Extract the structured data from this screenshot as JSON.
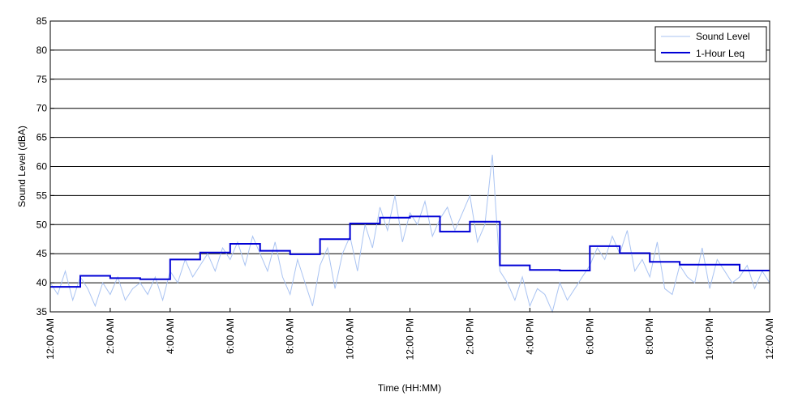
{
  "chart_data": {
    "type": "line",
    "title": "",
    "xlabel": "Time (HH:MM)",
    "ylabel": "Sound Level (dBA)",
    "xlim": [
      0,
      24
    ],
    "ylim": [
      35,
      85
    ],
    "y_ticks": [
      35,
      40,
      45,
      50,
      55,
      60,
      65,
      70,
      75,
      80,
      85
    ],
    "x_ticks": [
      {
        "hour": 0,
        "label": "12:00 AM"
      },
      {
        "hour": 2,
        "label": "2:00 AM"
      },
      {
        "hour": 4,
        "label": "4:00 AM"
      },
      {
        "hour": 6,
        "label": "6:00 AM"
      },
      {
        "hour": 8,
        "label": "8:00 AM"
      },
      {
        "hour": 10,
        "label": "10:00 AM"
      },
      {
        "hour": 12,
        "label": "12:00 PM"
      },
      {
        "hour": 14,
        "label": "2:00 PM"
      },
      {
        "hour": 16,
        "label": "4:00 PM"
      },
      {
        "hour": 18,
        "label": "6:00 PM"
      },
      {
        "hour": 20,
        "label": "8:00 PM"
      },
      {
        "hour": 22,
        "label": "10:00 PM"
      },
      {
        "hour": 24,
        "label": "12:00 AM"
      }
    ],
    "grid": "horizontal",
    "legend_position": "top-right",
    "series": [
      {
        "name": "Sound Level",
        "color": "#a9c3f2",
        "x": [
          0,
          0.25,
          0.5,
          0.75,
          1,
          1.25,
          1.5,
          1.75,
          2,
          2.25,
          2.5,
          2.75,
          3,
          3.25,
          3.5,
          3.75,
          4,
          4.25,
          4.5,
          4.75,
          5,
          5.25,
          5.5,
          5.75,
          6,
          6.25,
          6.5,
          6.75,
          7,
          7.25,
          7.5,
          7.75,
          8,
          8.25,
          8.5,
          8.75,
          9,
          9.25,
          9.5,
          9.75,
          10,
          10.25,
          10.5,
          10.75,
          11,
          11.25,
          11.5,
          11.75,
          12,
          12.25,
          12.5,
          12.75,
          13,
          13.25,
          13.5,
          13.75,
          14,
          14.25,
          14.5,
          14.75,
          15,
          15.25,
          15.5,
          15.75,
          16,
          16.25,
          16.5,
          16.75,
          17,
          17.25,
          17.5,
          17.75,
          18,
          18.25,
          18.5,
          18.75,
          19,
          19.25,
          19.5,
          19.75,
          20,
          20.25,
          20.5,
          20.75,
          21,
          21.25,
          21.5,
          21.75,
          22,
          22.25,
          22.5,
          22.75,
          23,
          23.25,
          23.5,
          23.75,
          24
        ],
        "y": [
          40,
          38,
          42,
          37,
          41,
          39,
          36,
          40,
          38,
          41,
          37,
          39,
          40,
          38,
          41,
          37,
          42,
          40,
          44,
          41,
          43,
          45,
          42,
          46,
          44,
          47,
          43,
          48,
          45,
          42,
          47,
          41,
          38,
          44,
          40,
          36,
          43,
          46,
          39,
          45,
          48,
          42,
          50,
          46,
          53,
          49,
          55,
          47,
          52,
          50,
          54,
          48,
          51,
          53,
          49,
          52,
          55,
          47,
          50,
          62,
          42,
          40,
          37,
          41,
          36,
          39,
          38,
          35,
          40,
          37,
          39,
          41,
          43,
          46,
          44,
          48,
          45,
          49,
          42,
          44,
          41,
          47,
          39,
          38,
          43,
          41,
          40,
          46,
          39,
          44,
          42,
          40,
          41,
          43,
          39,
          42,
          40
        ]
      },
      {
        "name": "1-Hour Leq",
        "color": "#0000d6",
        "step": "post",
        "x": [
          0,
          1,
          2,
          3,
          4,
          5,
          6,
          7,
          8,
          9,
          10,
          11,
          12,
          13,
          14,
          15,
          16,
          17,
          18,
          19,
          20,
          21,
          22,
          23,
          24
        ],
        "y": [
          39.3,
          41.2,
          40.8,
          40.6,
          44.0,
          45.2,
          46.7,
          45.5,
          44.9,
          47.5,
          50.2,
          51.2,
          51.4,
          48.8,
          50.5,
          43.0,
          42.2,
          42.1,
          46.3,
          45.1,
          43.6,
          43.1,
          43.1,
          42.1,
          42.1
        ]
      }
    ]
  }
}
